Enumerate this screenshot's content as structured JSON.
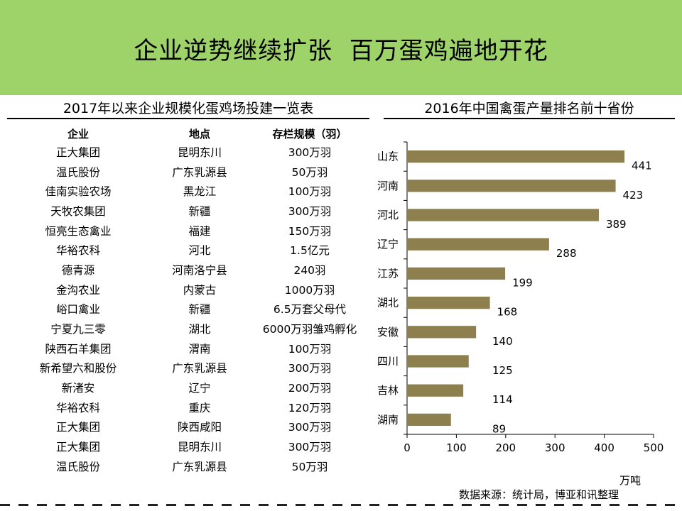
{
  "header": {
    "title": "企业逆势继续扩张  百万蛋鸡遍地开花"
  },
  "table": {
    "title": "2017年以来企业规模化蛋鸡场投建一览表",
    "columns": [
      "企业",
      "地点",
      "存栏规模（羽）"
    ],
    "rows": [
      [
        "正大集团",
        "昆明东川",
        "300万羽"
      ],
      [
        "温氏股份",
        "广东乳源县",
        "50万羽"
      ],
      [
        "佳南实验农场",
        "黑龙江",
        "100万羽"
      ],
      [
        "天牧农集团",
        "新疆",
        "300万羽"
      ],
      [
        "恒亮生态禽业",
        "福建",
        "150万羽"
      ],
      [
        "华裕农科",
        "河北",
        "1.5亿元"
      ],
      [
        "德青源",
        "河南洛宁县",
        "240羽"
      ],
      [
        "金沟农业",
        "内蒙古",
        "1000万羽"
      ],
      [
        "峪口禽业",
        "新疆",
        "6.5万套父母代"
      ],
      [
        "宁夏九三零",
        "湖北",
        "6000万羽雏鸡孵化"
      ],
      [
        "陕西石羊集团",
        "渭南",
        "100万羽"
      ],
      [
        "新希望六和股份",
        "广东乳源县",
        "300万羽"
      ],
      [
        "新渚安",
        "辽宁",
        "200万羽"
      ],
      [
        "华裕农科",
        "重庆",
        "120万羽"
      ],
      [
        "正大集团",
        "陕西咸阳",
        "300万羽"
      ],
      [
        "正大集团",
        "昆明东川",
        "300万羽"
      ],
      [
        "温氏股份",
        "广东乳源县",
        "50万羽"
      ]
    ]
  },
  "chart_data": {
    "type": "bar",
    "orientation": "horizontal",
    "title": "2016年中国禽蛋产量排名前十省份",
    "categories": [
      "山东",
      "河南",
      "河北",
      "辽宁",
      "江苏",
      "湖北",
      "安徽",
      "四川",
      "吉林",
      "湖南"
    ],
    "values": [
      441,
      423,
      389,
      288,
      199,
      168,
      140,
      125,
      114,
      89
    ],
    "xlim": [
      0,
      500
    ],
    "xticks": [
      "0",
      "100",
      "200",
      "300",
      "400",
      "500"
    ],
    "xlabel": "万吨",
    "bar_color": "#8e7f4e",
    "grid": false,
    "legend": "none"
  },
  "source": "数据来源：统计局，博亚和讯整理",
  "colors": {
    "header_bg": "#9ed36a",
    "bar": "#8e7f4e"
  }
}
